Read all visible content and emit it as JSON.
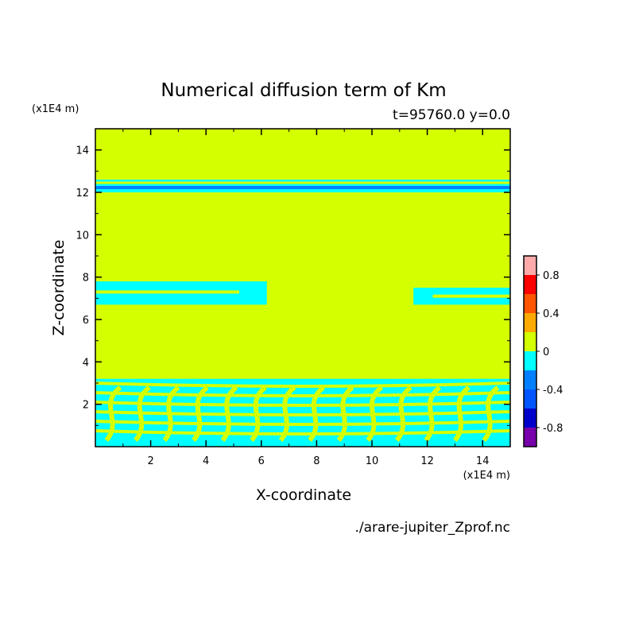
{
  "chart_data": {
    "type": "heatmap",
    "title": "Numerical diffusion term of Km",
    "subtitle": "t=95760.0 y=0.0",
    "xlabel": "X-coordinate",
    "ylabel": "Z-coordinate",
    "x_unit": "(x1E4 m)",
    "y_unit": "(x1E4 m)",
    "footer": "./arare-jupiter_Zprof.nc",
    "xlim": [
      0,
      15
    ],
    "ylim": [
      0,
      15
    ],
    "xticks": [
      2,
      4,
      6,
      8,
      10,
      12,
      14
    ],
    "yticks": [
      2,
      4,
      6,
      8,
      10,
      12,
      14
    ],
    "background_band": {
      "range": [
        0,
        0.2
      ],
      "color": "#d4ff00"
    },
    "bands": [
      {
        "zmin": 12.0,
        "zmax": 12.6,
        "color": "#00ffff",
        "value_range": [
          -0.2,
          0
        ]
      },
      {
        "zmin": 12.15,
        "zmax": 12.3,
        "color": "#0080ff",
        "value_range": [
          -0.4,
          -0.2
        ]
      },
      {
        "zmin": 6.7,
        "zmax": 7.8,
        "color": "#00ffff",
        "value_range": [
          -0.2,
          0
        ],
        "xmin": 0,
        "xmax": 6.2
      },
      {
        "zmin": 6.7,
        "zmax": 7.5,
        "color": "#00ffff",
        "value_range": [
          -0.2,
          0
        ],
        "xmin": 11.5,
        "xmax": 15
      },
      {
        "zmin": 0,
        "zmax": 3.2,
        "color": "#00ffff",
        "value_range": [
          -0.2,
          0
        ]
      }
    ],
    "colorbar": {
      "levels": [
        {
          "range": [
            0.8,
            1.0
          ],
          "color": "#ffaaaa"
        },
        {
          "range": [
            0.6,
            0.8
          ],
          "color": "#ff0000"
        },
        {
          "range": [
            0.4,
            0.6
          ],
          "color": "#ff5500"
        },
        {
          "range": [
            0.2,
            0.4
          ],
          "color": "#ffaa00"
        },
        {
          "range": [
            0.0,
            0.2
          ],
          "color": "#d4ff00"
        },
        {
          "range": [
            -0.2,
            0.0
          ],
          "color": "#00ffff"
        },
        {
          "range": [
            -0.4,
            -0.2
          ],
          "color": "#0080ff"
        },
        {
          "range": [
            -0.6,
            -0.4
          ],
          "color": "#0055ff"
        },
        {
          "range": [
            -0.8,
            -0.6
          ],
          "color": "#0000cc"
        },
        {
          "range": [
            -1.0,
            -0.8
          ],
          "color": "#7700aa"
        }
      ],
      "tick_labels": [
        "0.8",
        "0.4",
        "0",
        "-0.4",
        "-0.8"
      ],
      "tick_values": [
        0.8,
        0.4,
        0,
        -0.4,
        -0.8
      ],
      "range": [
        -1,
        1
      ]
    }
  }
}
